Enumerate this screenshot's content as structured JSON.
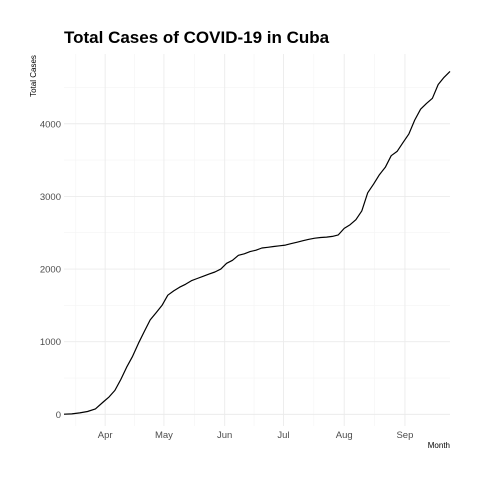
{
  "chart_data": {
    "type": "line",
    "title": "Total Cases of COVID-19 in Cuba",
    "xlabel": "Month",
    "ylabel": "Total Cases",
    "x_tick_labels": [
      "Apr",
      "May",
      "Jun",
      "Jul",
      "Aug",
      "Sep"
    ],
    "x_tick_dates": [
      "2020-04-01",
      "2020-05-01",
      "2020-06-01",
      "2020-07-01",
      "2020-08-01",
      "2020-09-01"
    ],
    "y_ticks": [
      0,
      1000,
      2000,
      3000,
      4000
    ],
    "xlim": [
      "2020-03-11",
      "2020-09-24"
    ],
    "ylim": [
      -160,
      4960
    ],
    "grid": true,
    "legend": "none",
    "series": [
      {
        "x": [
          "2020-03-11",
          "2020-03-15",
          "2020-03-19",
          "2020-03-23",
          "2020-03-27",
          "2020-03-31",
          "2020-04-03",
          "2020-04-06",
          "2020-04-09",
          "2020-04-12",
          "2020-04-15",
          "2020-04-18",
          "2020-04-21",
          "2020-04-24",
          "2020-04-27",
          "2020-04-30",
          "2020-05-03",
          "2020-05-06",
          "2020-05-09",
          "2020-05-12",
          "2020-05-15",
          "2020-05-18",
          "2020-05-21",
          "2020-05-24",
          "2020-05-27",
          "2020-05-30",
          "2020-06-02",
          "2020-06-05",
          "2020-06-08",
          "2020-06-11",
          "2020-06-14",
          "2020-06-17",
          "2020-06-20",
          "2020-06-23",
          "2020-06-26",
          "2020-06-29",
          "2020-07-02",
          "2020-07-05",
          "2020-07-08",
          "2020-07-11",
          "2020-07-14",
          "2020-07-17",
          "2020-07-20",
          "2020-07-23",
          "2020-07-26",
          "2020-07-29",
          "2020-08-01",
          "2020-08-04",
          "2020-08-07",
          "2020-08-10",
          "2020-08-13",
          "2020-08-16",
          "2020-08-19",
          "2020-08-22",
          "2020-08-25",
          "2020-08-28",
          "2020-08-31",
          "2020-09-03",
          "2020-09-06",
          "2020-09-09",
          "2020-09-12",
          "2020-09-15",
          "2020-09-18",
          "2020-09-21",
          "2020-09-24"
        ],
        "y": [
          3,
          7,
          20,
          40,
          75,
          170,
          240,
          330,
          480,
          650,
          800,
          980,
          1140,
          1300,
          1400,
          1500,
          1640,
          1700,
          1750,
          1790,
          1840,
          1870,
          1900,
          1930,
          1960,
          2000,
          2080,
          2120,
          2190,
          2210,
          2240,
          2260,
          2290,
          2300,
          2310,
          2320,
          2330,
          2350,
          2370,
          2390,
          2410,
          2425,
          2435,
          2440,
          2450,
          2470,
          2560,
          2610,
          2680,
          2800,
          3050,
          3170,
          3300,
          3400,
          3560,
          3620,
          3740,
          3860,
          4050,
          4200,
          4280,
          4350,
          4540,
          4640,
          4720
        ]
      }
    ]
  }
}
